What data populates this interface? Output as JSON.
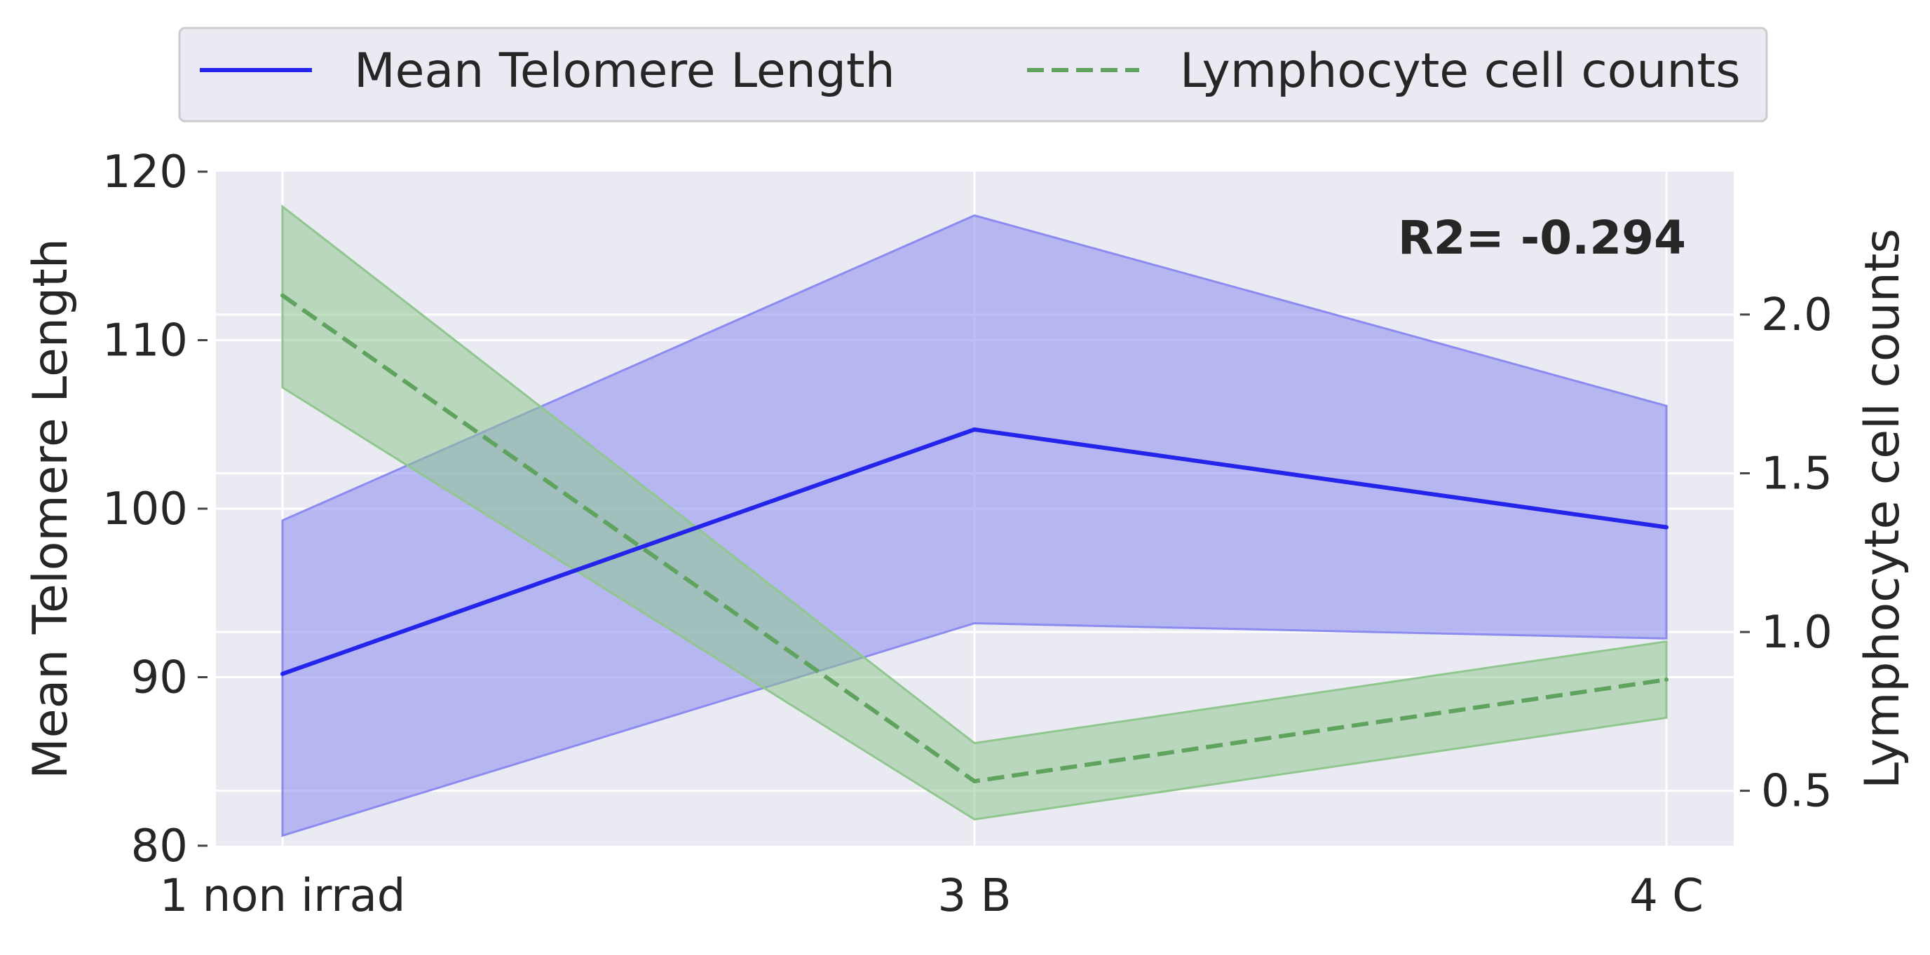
{
  "chart_data": {
    "type": "line",
    "categories": [
      "1 non irrad",
      "3 B",
      "4 C"
    ],
    "legend": {
      "placement": "top-center",
      "entries": [
        {
          "label": "Mean Telomere Length",
          "color": "#2424ea",
          "style": "solid"
        },
        {
          "label": "Lymphocyte cell counts",
          "color": "#5fa35f",
          "style": "dashed"
        }
      ]
    },
    "y_left": {
      "label": "Mean Telomere Length",
      "lim": [
        80,
        120
      ],
      "ticks": [
        80,
        90,
        100,
        110,
        120
      ],
      "tick_labels": [
        "80",
        "90",
        "100",
        "110",
        "120"
      ]
    },
    "y_right": {
      "label": "Lymphocyte cell counts",
      "lim": [
        0.327,
        2.45
      ],
      "ticks": [
        0.5,
        1.0,
        1.5,
        2.0
      ],
      "tick_labels": [
        "0.5",
        "1.0",
        "1.5",
        "2.0"
      ]
    },
    "series": [
      {
        "name": "Mean Telomere Length",
        "axis": "left",
        "color": "#2424ea",
        "band_color": "#8b8bf0",
        "values": [
          90.2,
          104.7,
          98.9
        ],
        "lower": [
          80.6,
          93.2,
          92.3
        ],
        "upper": [
          99.3,
          117.4,
          106.1
        ]
      },
      {
        "name": "Lymphocyte cell counts",
        "axis": "right",
        "color": "#5fa35f",
        "band_color": "#8fc78f",
        "values": [
          2.06,
          0.53,
          0.85
        ],
        "lower": [
          1.77,
          0.41,
          0.73
        ],
        "upper": [
          2.34,
          0.65,
          0.97
        ]
      }
    ],
    "annotation": "R2= -0.294",
    "grid": true
  }
}
